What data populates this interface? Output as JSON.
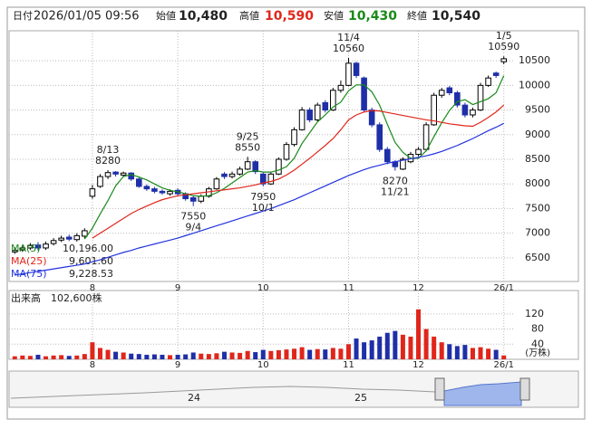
{
  "header": {
    "date_label": "日付",
    "datetime": "2026/01/05 09:56",
    "open_label": "始値",
    "open": "10,480",
    "high_label": "高値",
    "high": "10,590",
    "low_label": "安値",
    "low": "10,430",
    "close_label": "終値",
    "close": "10,540"
  },
  "chart_data": [
    {
      "type": "candlestick",
      "categories": [
        null,
        null,
        null,
        null,
        null,
        null,
        null,
        null,
        null,
        null,
        "8",
        null,
        null,
        null,
        null,
        null,
        null,
        null,
        null,
        null,
        null,
        "9",
        null,
        null,
        null,
        null,
        null,
        null,
        null,
        null,
        null,
        null,
        "10",
        null,
        null,
        null,
        null,
        null,
        null,
        null,
        null,
        null,
        null,
        "11",
        null,
        null,
        null,
        null,
        null,
        null,
        null,
        null,
        "12",
        null,
        null,
        null,
        null,
        null,
        null,
        null,
        null,
        null,
        null,
        "26/1"
      ],
      "open": [
        6620,
        6660,
        6700,
        6760,
        6700,
        6790,
        6860,
        6920,
        6870,
        6940,
        7750,
        7950,
        8150,
        8240,
        8180,
        8220,
        8100,
        7950,
        7900,
        7850,
        7800,
        7870,
        7800,
        7720,
        7650,
        7750,
        7900,
        8200,
        8150,
        8200,
        8300,
        8450,
        8200,
        8000,
        8200,
        8500,
        8800,
        9100,
        9500,
        9300,
        9650,
        9500,
        9900,
        10000,
        10450,
        10150,
        9500,
        9200,
        8700,
        8450,
        8300,
        8450,
        8600,
        8700,
        9200,
        9800,
        9950,
        9850,
        9600,
        9400,
        9500,
        10000,
        10250,
        10480
      ],
      "high": [
        6710,
        6750,
        6800,
        6820,
        6830,
        6900,
        6950,
        6970,
        7000,
        7100,
        7980,
        8200,
        8280,
        8260,
        8250,
        8240,
        8130,
        7990,
        7940,
        7890,
        7890,
        7910,
        7830,
        7760,
        7790,
        7940,
        8140,
        8240,
        8250,
        8350,
        8550,
        8480,
        8230,
        8240,
        8540,
        8850,
        9150,
        9560,
        9550,
        9650,
        9700,
        9950,
        10100,
        10560,
        10480,
        10180,
        9550,
        9250,
        8750,
        8480,
        8540,
        8650,
        8750,
        9250,
        9850,
        9950,
        9990,
        9890,
        9650,
        9550,
        10050,
        10200,
        10280,
        10590
      ],
      "low": [
        6580,
        6620,
        6660,
        6650,
        6660,
        6750,
        6820,
        6840,
        6830,
        6900,
        7700,
        7920,
        8100,
        8150,
        8140,
        8060,
        7920,
        7860,
        7810,
        7780,
        7760,
        7760,
        7660,
        7550,
        7610,
        7720,
        7880,
        8100,
        8110,
        8170,
        8280,
        8200,
        7950,
        7980,
        8180,
        8470,
        8760,
        9080,
        9250,
        9270,
        9450,
        9480,
        9850,
        9980,
        10150,
        9450,
        9150,
        8650,
        8400,
        8270,
        8280,
        8420,
        8560,
        8680,
        9180,
        9750,
        9800,
        9550,
        9350,
        9350,
        9480,
        9970,
        10150,
        10430
      ],
      "close": [
        6650,
        6700,
        6750,
        6700,
        6780,
        6850,
        6900,
        6880,
        6950,
        7050,
        7900,
        8150,
        8230,
        8200,
        8220,
        8100,
        7950,
        7900,
        7850,
        7820,
        7850,
        7800,
        7700,
        7650,
        7750,
        7900,
        8100,
        8150,
        8200,
        8300,
        8450,
        8250,
        8000,
        8200,
        8500,
        8800,
        9100,
        9500,
        9300,
        9600,
        9500,
        9900,
        10000,
        10450,
        10200,
        9500,
        9200,
        8700,
        8450,
        8350,
        8500,
        8600,
        8700,
        9200,
        9800,
        9900,
        9850,
        9600,
        9400,
        9500,
        10000,
        10150,
        10200,
        10540
      ],
      "up_color": "#ffffff",
      "down_color": "#1f2fa8",
      "series": [
        {
          "name": "MA(5)",
          "color": "#1a8a1a",
          "legend_value": {
            "value": 10196,
            "label": "10,196.00"
          },
          "values": [
            null,
            null,
            null,
            null,
            null,
            null,
            null,
            null,
            null,
            6880,
            7100,
            7390,
            7660,
            7960,
            8150,
            8190,
            8140,
            8080,
            8000,
            7920,
            7870,
            7840,
            7800,
            7760,
            7750,
            7760,
            7820,
            7910,
            8020,
            8130,
            8240,
            8270,
            8240,
            8240,
            8280,
            8350,
            8520,
            8820,
            9040,
            9260,
            9400,
            9560,
            9660,
            9890,
            10010,
            10010,
            9870,
            9600,
            9210,
            8840,
            8640,
            8520,
            8520,
            8670,
            8960,
            9240,
            9490,
            9670,
            9710,
            9610,
            9670,
            9730,
            9850,
            10196
          ]
        },
        {
          "name": "MA(25)",
          "color": "#e0261b",
          "legend_value": {
            "value": 9601.6,
            "label": "9,601.60"
          },
          "values": [
            null,
            null,
            null,
            null,
            null,
            null,
            null,
            null,
            null,
            null,
            6900,
            7000,
            7100,
            7200,
            7300,
            7400,
            7480,
            7550,
            7620,
            7680,
            7720,
            7760,
            7780,
            7800,
            7820,
            7840,
            7860,
            7880,
            7900,
            7920,
            7950,
            7980,
            8020,
            8050,
            8100,
            8180,
            8280,
            8400,
            8520,
            8650,
            8780,
            8920,
            9100,
            9300,
            9400,
            9460,
            9490,
            9480,
            9450,
            9420,
            9390,
            9360,
            9330,
            9300,
            9280,
            9250,
            9220,
            9200,
            9180,
            9170,
            9250,
            9350,
            9460,
            9601.6
          ]
        },
        {
          "name": "MA(75)",
          "color": "#2233dd",
          "legend_value": {
            "value": 9228.53,
            "label": "9,228.53"
          },
          "values": [
            6150,
            6175,
            6200,
            6225,
            6250,
            6275,
            6300,
            6325,
            6350,
            6375,
            6420,
            6460,
            6510,
            6560,
            6610,
            6650,
            6700,
            6740,
            6780,
            6820,
            6860,
            6900,
            6950,
            7000,
            7050,
            7100,
            7150,
            7200,
            7250,
            7300,
            7350,
            7400,
            7450,
            7500,
            7560,
            7620,
            7680,
            7750,
            7820,
            7890,
            7960,
            8030,
            8100,
            8170,
            8230,
            8290,
            8340,
            8380,
            8420,
            8450,
            8480,
            8510,
            8540,
            8570,
            8610,
            8660,
            8720,
            8780,
            8850,
            8920,
            9000,
            9080,
            9150,
            9228.53
          ]
        }
      ],
      "ylim": [
        6020,
        11090
      ],
      "yticks": [
        6500,
        7000,
        7500,
        8000,
        8500,
        9000,
        9500,
        10000,
        10500
      ],
      "grid": true,
      "annotations": [
        {
          "date": "8/13",
          "value": 8280,
          "at": "high"
        },
        {
          "date": "9/4",
          "value": 7550,
          "at": "low"
        },
        {
          "date": "9/25",
          "value": 8550,
          "at": "high"
        },
        {
          "date": "10/1",
          "value": 7950,
          "at": "low"
        },
        {
          "date": "11/4",
          "value": 10560,
          "at": "high"
        },
        {
          "date": "11/21",
          "value": 8270,
          "at": "low"
        },
        {
          "date": "1/5",
          "value": 10590,
          "at": "high"
        }
      ]
    },
    {
      "type": "bar",
      "title": "出来高",
      "latest": "102,600株",
      "unit": "(万株)",
      "values": [
        8,
        10,
        9,
        12,
        8,
        10,
        11,
        9,
        10,
        14,
        45,
        30,
        25,
        20,
        18,
        15,
        14,
        12,
        13,
        12,
        11,
        12,
        13,
        18,
        15,
        14,
        16,
        20,
        18,
        17,
        22,
        19,
        25,
        22,
        24,
        26,
        28,
        32,
        25,
        27,
        26,
        30,
        28,
        40,
        55,
        45,
        50,
        60,
        70,
        75,
        65,
        60,
        132,
        80,
        60,
        45,
        40,
        35,
        38,
        30,
        32,
        28,
        25,
        10.26
      ],
      "up_color": "#e0261b",
      "down_color": "#1f2fa8",
      "ylim": [
        0,
        177
      ],
      "yticks": [
        40,
        80,
        120
      ],
      "grid": true
    }
  ],
  "navigator": {
    "labels": [
      "24",
      "25"
    ]
  }
}
